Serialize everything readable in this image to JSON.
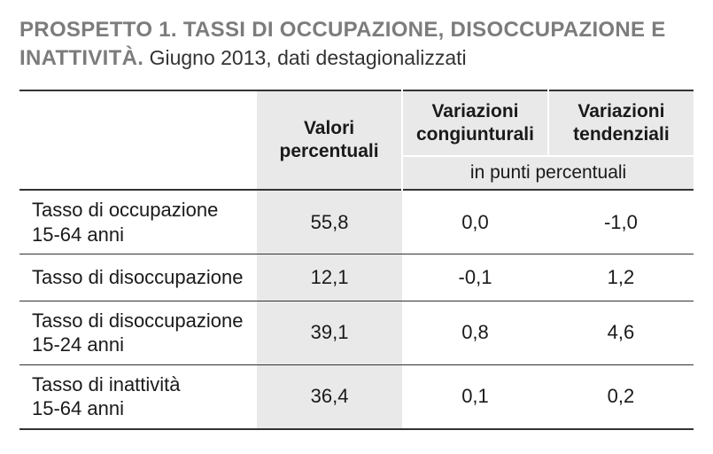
{
  "title": {
    "bold": "PROSPETTO 1. TASSI DI OCCUPAZIONE, DISOCCUPAZIONE E INATTIVITÀ.",
    "regular": " Giugno 2013, dati destagionalizzati"
  },
  "table": {
    "type": "table",
    "header": {
      "col1": "Valori percentuali",
      "col2": "Variazioni congiunturali",
      "col3": "Variazioni tendenziali",
      "subheader": "in punti percentuali"
    },
    "rows": [
      {
        "label_l1": "Tasso di occupazione",
        "label_l2": "15-64 anni",
        "v1": "55,8",
        "v2": "0,0",
        "v3": "-1,0"
      },
      {
        "label_l1": "Tasso di disoccupazione",
        "label_l2": "",
        "v1": "12,1",
        "v2": "-0,1",
        "v3": "1,2"
      },
      {
        "label_l1": "Tasso di disoccupazione",
        "label_l2": "15-24 anni",
        "v1": "39,1",
        "v2": "0,8",
        "v3": "4,6"
      },
      {
        "label_l1": "Tasso di inattività",
        "label_l2": "15-64 anni",
        "v1": "36,4",
        "v2": "0,1",
        "v3": "0,2"
      }
    ],
    "colors": {
      "header_bg": "#e9e9e9",
      "shaded_col_bg": "#e9e9e9",
      "border": "#333333",
      "title_bold_color": "#7c7c7c",
      "text_color": "#1a1a1a",
      "background": "#ffffff"
    },
    "fonts": {
      "title_bold_size": 24,
      "title_regular_size": 23,
      "header_size": 21,
      "body_size": 22
    }
  }
}
